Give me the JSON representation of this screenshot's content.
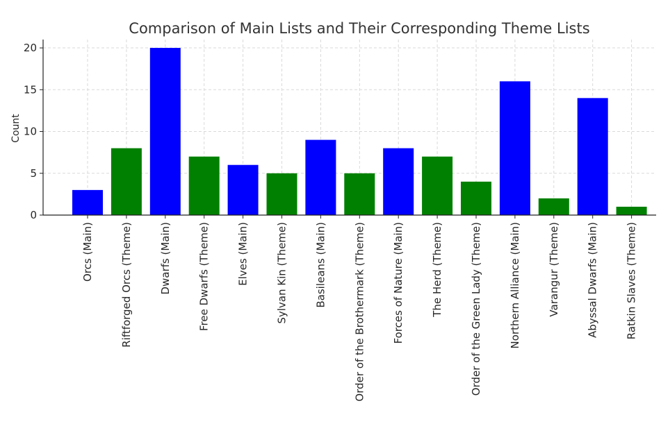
{
  "chart_data": {
    "type": "bar",
    "title": "Comparison of Main Lists and Their Corresponding Theme Lists",
    "xlabel": "",
    "ylabel": "Count",
    "ylim": [
      0,
      21
    ],
    "yticks": [
      0,
      5,
      10,
      15,
      20
    ],
    "grid": true,
    "categories": [
      "Orcs (Main)",
      "Riftforged Orcs (Theme)",
      "Dwarfs (Main)",
      "Free Dwarfs (Theme)",
      "Elves (Main)",
      "Sylvan Kin (Theme)",
      "Basileans (Main)",
      "Order of the Brothermark (Theme)",
      "Forces of Nature (Main)",
      "The Herd (Theme)",
      "Order of the Green Lady (Theme)",
      "Northern Alliance (Main)",
      "Varangur (Theme)",
      "Abyssal Dwarfs (Main)",
      "Ratkin Slaves (Theme)"
    ],
    "values": [
      3,
      8,
      20,
      7,
      6,
      5,
      9,
      5,
      8,
      7,
      4,
      16,
      2,
      14,
      1
    ],
    "bar_colors": [
      "#0000ff",
      "#008000",
      "#0000ff",
      "#008000",
      "#0000ff",
      "#008000",
      "#0000ff",
      "#008000",
      "#0000ff",
      "#008000",
      "#008000",
      "#0000ff",
      "#008000",
      "#0000ff",
      "#008000"
    ]
  }
}
